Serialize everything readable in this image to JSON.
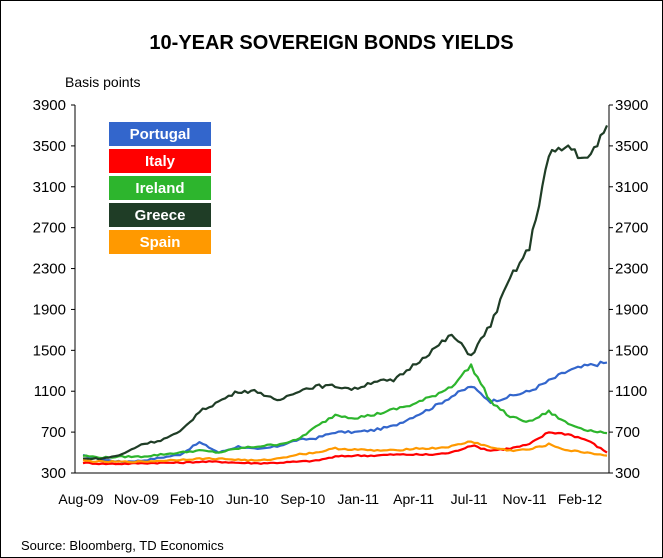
{
  "title": "10-YEAR SOVEREIGN BONDS YIELDS",
  "source": "Source: Bloomberg, TD Economics",
  "chart_data": {
    "type": "line",
    "title": "10-YEAR SOVEREIGN BONDS YIELDS",
    "ylabel": "Basis points",
    "xlabel": "",
    "ylim": [
      300,
      3900
    ],
    "yticks": [
      3900,
      3500,
      3100,
      2700,
      2300,
      1900,
      1500,
      1100,
      700,
      300
    ],
    "x_ticks": [
      "Aug-09",
      "Nov-09",
      "Feb-10",
      "Jun-10",
      "Sep-10",
      "Jan-11",
      "Apr-11",
      "Jul-11",
      "Nov-11",
      "Feb-12"
    ],
    "grid": false,
    "legend_position": "top-left",
    "x": [
      "Aug-09",
      "Oct-09",
      "Nov-09",
      "Jan-10",
      "Feb-10",
      "Apr-10",
      "May-10",
      "Jun-10",
      "Jul-10",
      "Aug-10",
      "Sep-10",
      "Oct-10",
      "Nov-10",
      "Dec-10",
      "Jan-11",
      "Feb-11",
      "Mar-11",
      "Apr-11",
      "May-11",
      "Jun-11",
      "Jul-11",
      "Aug-11",
      "Sep-11",
      "Oct-11",
      "Nov-11",
      "Dec-11",
      "Jan-12",
      "Feb-12"
    ],
    "series": [
      {
        "name": "Portugal",
        "color": "#3366cc",
        "values": [
          470,
          430,
          410,
          420,
          450,
          480,
          600,
          500,
          560,
          530,
          560,
          620,
          640,
          700,
          700,
          720,
          760,
          850,
          940,
          1050,
          1150,
          1000,
          1050,
          1100,
          1200,
          1300,
          1350,
          1380
        ]
      },
      {
        "name": "Italy",
        "color": "#ff0000",
        "values": [
          400,
          390,
          390,
          395,
          400,
          400,
          410,
          410,
          400,
          395,
          400,
          410,
          420,
          460,
          470,
          470,
          480,
          480,
          480,
          500,
          570,
          520,
          540,
          580,
          700,
          680,
          620,
          500
        ]
      },
      {
        "name": "Ireland",
        "color": "#2db52d",
        "values": [
          470,
          450,
          460,
          460,
          480,
          500,
          520,
          500,
          540,
          560,
          580,
          620,
          750,
          870,
          840,
          870,
          920,
          970,
          1050,
          1150,
          1350,
          1000,
          850,
          800,
          900,
          780,
          720,
          690
        ]
      },
      {
        "name": "Greece",
        "color": "#1f3d26",
        "values": [
          440,
          440,
          480,
          580,
          620,
          700,
          900,
          1000,
          1100,
          1100,
          1000,
          1100,
          1150,
          1150,
          1120,
          1200,
          1200,
          1350,
          1500,
          1650,
          1450,
          1750,
          2200,
          2500,
          3400,
          3500,
          3350,
          3700
        ]
      },
      {
        "name": "Spain",
        "color": "#ff9900",
        "values": [
          420,
          410,
          410,
          410,
          420,
          430,
          440,
          440,
          430,
          420,
          440,
          480,
          500,
          540,
          530,
          520,
          520,
          540,
          540,
          560,
          610,
          550,
          520,
          530,
          580,
          520,
          500,
          470
        ]
      }
    ]
  }
}
